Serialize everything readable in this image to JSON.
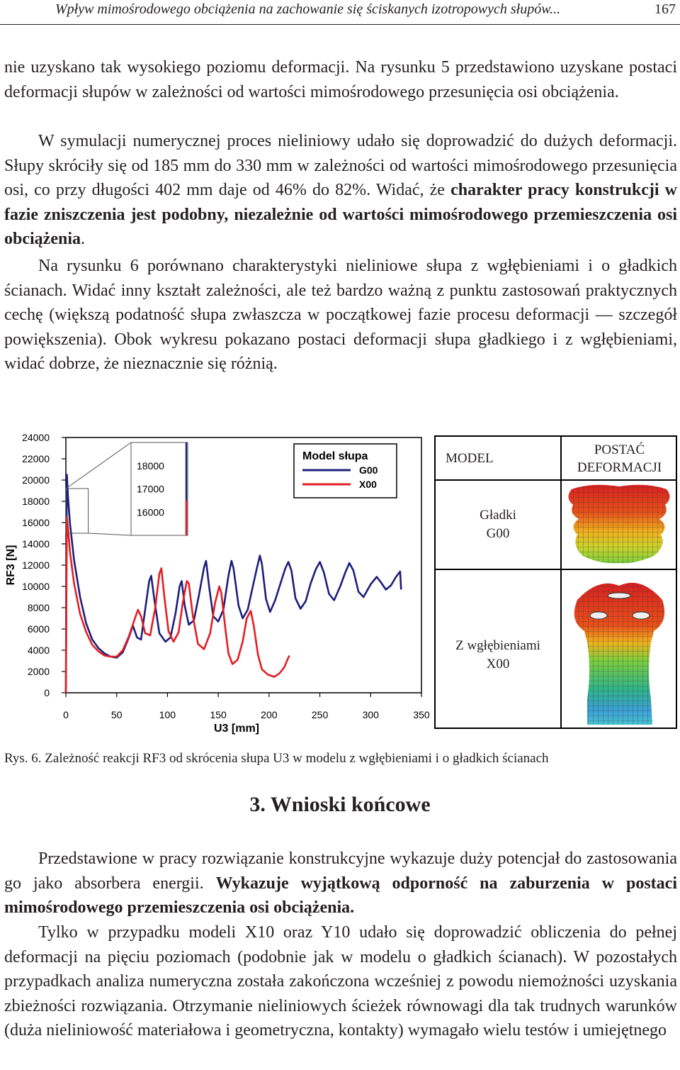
{
  "header": {
    "title": "Wpływ mimośrodowego obciążenia na zachowanie się ściskanych izotropowych słupów...",
    "page": "167"
  },
  "paragraphs": {
    "p1": "nie uzyskano tak wysokiego poziomu deformacji. Na rysunku 5 przedstawiono uzyskane postaci deformacji słupów w zależności od wartości mimośrodowego przesunięcia osi obciążenia.",
    "p2_a": "W symulacji numerycznej proces nieliniowy udało się doprowadzić do dużych deformacji. Słupy skróciły się od 185 mm do 330 mm w zależności od wartości mimośrodowego przesunięcia osi, co przy długości 402 mm daje od 46% do 82%. Widać, że ",
    "p2_b": "charakter pracy konstrukcji w fazie zniszczenia jest podobny, niezależnie od wartości mimośrodowego przemieszczenia osi obciążenia",
    "p2_c": ".",
    "p3": "Na rysunku 6 porównano charakterystyki nieliniowe słupa z wgłębieniami i o gładkich ścianach. Widać inny kształt zależności, ale też bardzo ważną z punktu zastosowań praktycznych cechę (większą podatność słupa zwłaszcza w początkowej fazie procesu deformacji — szczegół powiększenia). Obok wykresu pokazano postaci deformacji słupa gładkiego i z wgłębieniami, widać dobrze, że nieznacznie się różnią.",
    "p4_a": "Przedstawione w pracy rozwiązanie konstrukcyjne wykazuje duży potencjał do zastosowania go jako absorbera energii. ",
    "p4_b": "Wykazuje wyjątkową odporność na zaburzenia w postaci mimośrodowego przemieszczenia osi obciążenia.",
    "p5": "Tylko w przypadku modeli X10 oraz Y10 udało się doprowadzić obliczenia do pełnej deformacji na pięciu poziomach (podobnie jak w modelu o gładkich ścianach). W pozostałych przypadkach analiza numeryczna została zakończona wcześniej z powodu niemożności uzyskania zbieżności rozwiązania. Otrzymanie nieliniowych ścieżek równowagi dla tak trudnych warunków (duża nieliniowość materiałowa i geometryczna, kontakty) wymagało wielu testów i umiejętnego"
  },
  "figure": {
    "caption": "Rys. 6. Zależność reakcji RF3 od skrócenia słupa U3 w modelu z wgłębieniami i o gładkich ścianach",
    "table": {
      "col1_header": "MODEL",
      "col2_header_line1": "POSTAĆ",
      "col2_header_line2": "DEFORMACJI",
      "row1_line1": "Gładki",
      "row1_line2": "G00",
      "row2_line1": "Z wgłębieniami",
      "row2_line2": "X00"
    }
  },
  "section": {
    "title": "3. Wnioski końcowe"
  },
  "chart_data": {
    "type": "line",
    "xlabel": "U3 [mm]",
    "ylabel": "RF3 [N]",
    "xlim": [
      0,
      350
    ],
    "ylim": [
      0,
      24000
    ],
    "xticks": [
      "0",
      "50",
      "100",
      "150",
      "200",
      "250",
      "300",
      "350"
    ],
    "yticks": [
      "0",
      "2000",
      "4000",
      "6000",
      "8000",
      "10000",
      "12000",
      "14000",
      "16000",
      "18000",
      "20000",
      "22000",
      "24000"
    ],
    "grid": false,
    "legend": {
      "title": "Model słupa",
      "position": "top-right"
    },
    "series": [
      {
        "name": "G00",
        "color": "#1c1f7a",
        "points": [
          [
            0,
            0
          ],
          [
            1,
            20500
          ],
          [
            2,
            18500
          ],
          [
            4,
            16000
          ],
          [
            8,
            12500
          ],
          [
            14,
            9000
          ],
          [
            20,
            6500
          ],
          [
            26,
            5000
          ],
          [
            32,
            4200
          ],
          [
            38,
            3700
          ],
          [
            44,
            3400
          ],
          [
            50,
            3300
          ],
          [
            56,
            3800
          ],
          [
            62,
            5200
          ],
          [
            66,
            6300
          ],
          [
            70,
            5200
          ],
          [
            74,
            5000
          ],
          [
            78,
            7800
          ],
          [
            82,
            10500
          ],
          [
            84,
            11000
          ],
          [
            87,
            8800
          ],
          [
            92,
            5600
          ],
          [
            98,
            4800
          ],
          [
            103,
            5200
          ],
          [
            108,
            7500
          ],
          [
            112,
            10000
          ],
          [
            114,
            10500
          ],
          [
            117,
            8200
          ],
          [
            121,
            6400
          ],
          [
            126,
            6800
          ],
          [
            131,
            9200
          ],
          [
            136,
            11800
          ],
          [
            138,
            12400
          ],
          [
            141,
            10000
          ],
          [
            145,
            7200
          ],
          [
            150,
            6700
          ],
          [
            155,
            7800
          ],
          [
            160,
            11000
          ],
          [
            163,
            12400
          ],
          [
            165,
            11700
          ],
          [
            170,
            8200
          ],
          [
            174,
            7000
          ],
          [
            179,
            7800
          ],
          [
            184,
            10000
          ],
          [
            188,
            11700
          ],
          [
            191,
            12900
          ],
          [
            193,
            12100
          ],
          [
            197,
            8800
          ],
          [
            201,
            7600
          ],
          [
            206,
            8700
          ],
          [
            211,
            10200
          ],
          [
            216,
            11700
          ],
          [
            219,
            12300
          ],
          [
            222,
            11500
          ],
          [
            226,
            8900
          ],
          [
            231,
            7900
          ],
          [
            236,
            8600
          ],
          [
            241,
            10300
          ],
          [
            246,
            11600
          ],
          [
            250,
            12300
          ],
          [
            254,
            11300
          ],
          [
            259,
            9300
          ],
          [
            264,
            8700
          ],
          [
            270,
            10000
          ],
          [
            275,
            11300
          ],
          [
            279,
            12200
          ],
          [
            283,
            11500
          ],
          [
            288,
            9500
          ],
          [
            293,
            9000
          ],
          [
            300,
            10200
          ],
          [
            306,
            10900
          ],
          [
            310,
            10400
          ],
          [
            315,
            9700
          ],
          [
            320,
            10100
          ],
          [
            325,
            10900
          ],
          [
            329,
            11400
          ],
          [
            330,
            9700
          ]
        ]
      },
      {
        "name": "X00",
        "color": "#e31e24",
        "points": [
          [
            0,
            0
          ],
          [
            1,
            16500
          ],
          [
            2,
            15500
          ],
          [
            4,
            13300
          ],
          [
            8,
            10300
          ],
          [
            14,
            7400
          ],
          [
            20,
            5700
          ],
          [
            26,
            4500
          ],
          [
            32,
            3900
          ],
          [
            38,
            3500
          ],
          [
            44,
            3400
          ],
          [
            50,
            3400
          ],
          [
            56,
            4000
          ],
          [
            62,
            5300
          ],
          [
            68,
            7000
          ],
          [
            71,
            7800
          ],
          [
            74,
            7200
          ],
          [
            78,
            5600
          ],
          [
            83,
            5400
          ],
          [
            88,
            8000
          ],
          [
            92,
            11200
          ],
          [
            94,
            11700
          ],
          [
            97,
            9000
          ],
          [
            101,
            5800
          ],
          [
            106,
            4800
          ],
          [
            111,
            5700
          ],
          [
            115,
            8400
          ],
          [
            119,
            10500
          ],
          [
            121,
            10300
          ],
          [
            125,
            7200
          ],
          [
            130,
            4600
          ],
          [
            136,
            4100
          ],
          [
            142,
            5600
          ],
          [
            147,
            8500
          ],
          [
            151,
            10000
          ],
          [
            153,
            9400
          ],
          [
            157,
            6000
          ],
          [
            160,
            3700
          ],
          [
            164,
            2700
          ],
          [
            169,
            3100
          ],
          [
            174,
            4800
          ],
          [
            178,
            7000
          ],
          [
            182,
            7700
          ],
          [
            185,
            6300
          ],
          [
            189,
            3600
          ],
          [
            193,
            2200
          ],
          [
            199,
            1700
          ],
          [
            205,
            1500
          ],
          [
            210,
            1800
          ],
          [
            215,
            2400
          ],
          [
            218,
            3100
          ],
          [
            220,
            3500
          ]
        ]
      }
    ],
    "inset": {
      "xlim": [
        0,
        25
      ],
      "ylim": [
        15000,
        19000
      ],
      "yticks": [
        "16000",
        "17000",
        "18000"
      ]
    }
  }
}
